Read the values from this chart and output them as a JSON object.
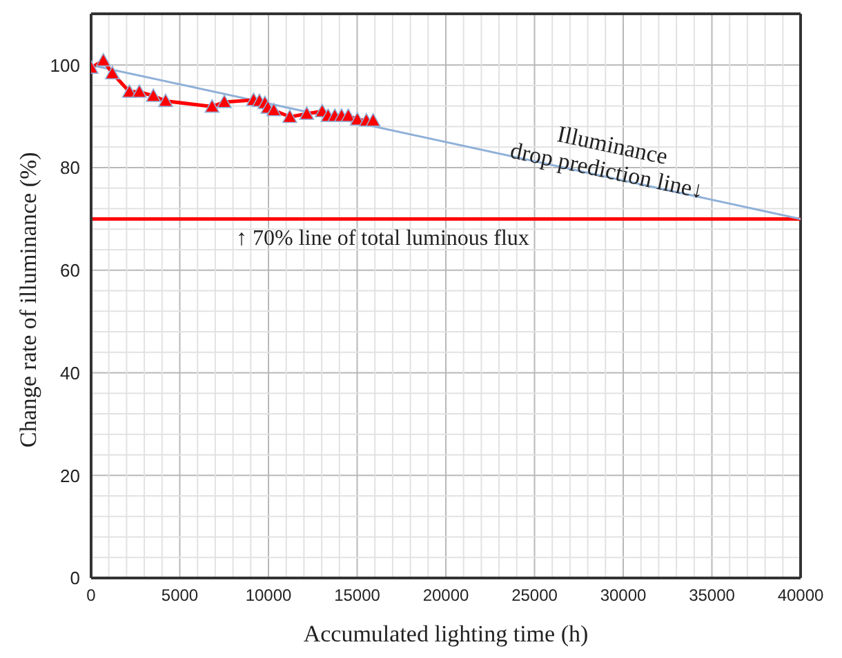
{
  "chart_data": {
    "type": "line",
    "xlabel": "Accumulated lighting time (h)",
    "ylabel": "Change rate of illuminance (%)",
    "xlim": [
      0,
      40000
    ],
    "xticks": [
      0,
      5000,
      10000,
      15000,
      20000,
      25000,
      30000,
      35000,
      40000
    ],
    "ylim": [
      0,
      110
    ],
    "yticks": [
      0,
      20,
      40,
      60,
      80,
      100
    ],
    "grid": true,
    "series": [
      {
        "color": "#ff0000",
        "marker": "triangle",
        "x": [
          0,
          690,
          1200,
          2160,
          2720,
          3510,
          4200,
          6820,
          7510,
          9160,
          9490,
          9800,
          9970,
          10300,
          11200,
          12160,
          13030,
          13360,
          13740,
          14120,
          14500,
          15010,
          15520,
          15900
        ],
        "values": [
          99.5,
          100.9,
          98.4,
          94.8,
          94.8,
          94.0,
          93.0,
          91.9,
          92.8,
          93.2,
          93.0,
          92.6,
          91.7,
          91.2,
          89.9,
          90.5,
          91.0,
          90.1,
          90.1,
          90.1,
          90.1,
          89.4,
          89.2,
          89.2
        ]
      },
      {
        "color": "#8fb0d8",
        "marker": "none",
        "x": [
          0,
          40000
        ],
        "values": [
          100,
          70
        ]
      }
    ],
    "ref_lines": [
      {
        "axis": "y",
        "value": 70,
        "label": "↑ 70% line of total luminous flux",
        "color": "#ff0000"
      }
    ],
    "annotations": [
      {
        "text": "Illuminance drop prediction line↓",
        "x": 29000,
        "y": 78
      }
    ]
  }
}
